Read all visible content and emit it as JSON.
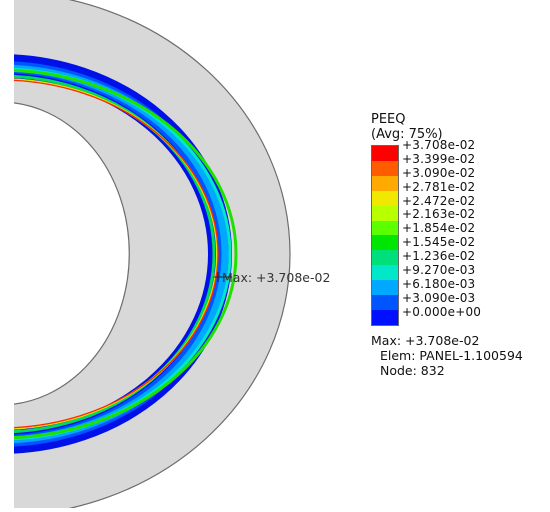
{
  "model": {
    "part_fill": "#d8d8d8",
    "part_outline": "#6d6d6d",
    "marker_label": "Max: +3.708e-02"
  },
  "legend": {
    "variable": "PEEQ",
    "averaging": "(Avg: 75%)",
    "colors": [
      "#ff0000",
      "#ff5c00",
      "#ffaa00",
      "#f0e800",
      "#b8ff00",
      "#5cff00",
      "#00e600",
      "#00e07a",
      "#00e8c8",
      "#00a8ff",
      "#0055ff",
      "#0010ff"
    ],
    "ticks": [
      "+3.708e-02",
      "+3.399e-02",
      "+3.090e-02",
      "+2.781e-02",
      "+2.472e-02",
      "+2.163e-02",
      "+1.854e-02",
      "+1.545e-02",
      "+1.236e-02",
      "+9.270e-03",
      "+6.180e-03",
      "+3.090e-03",
      "+0.000e+00"
    ],
    "max_line": "Max: +3.708e-02",
    "elem_line": "Elem: PANEL-1.100594",
    "node_line": "Node: 832"
  }
}
